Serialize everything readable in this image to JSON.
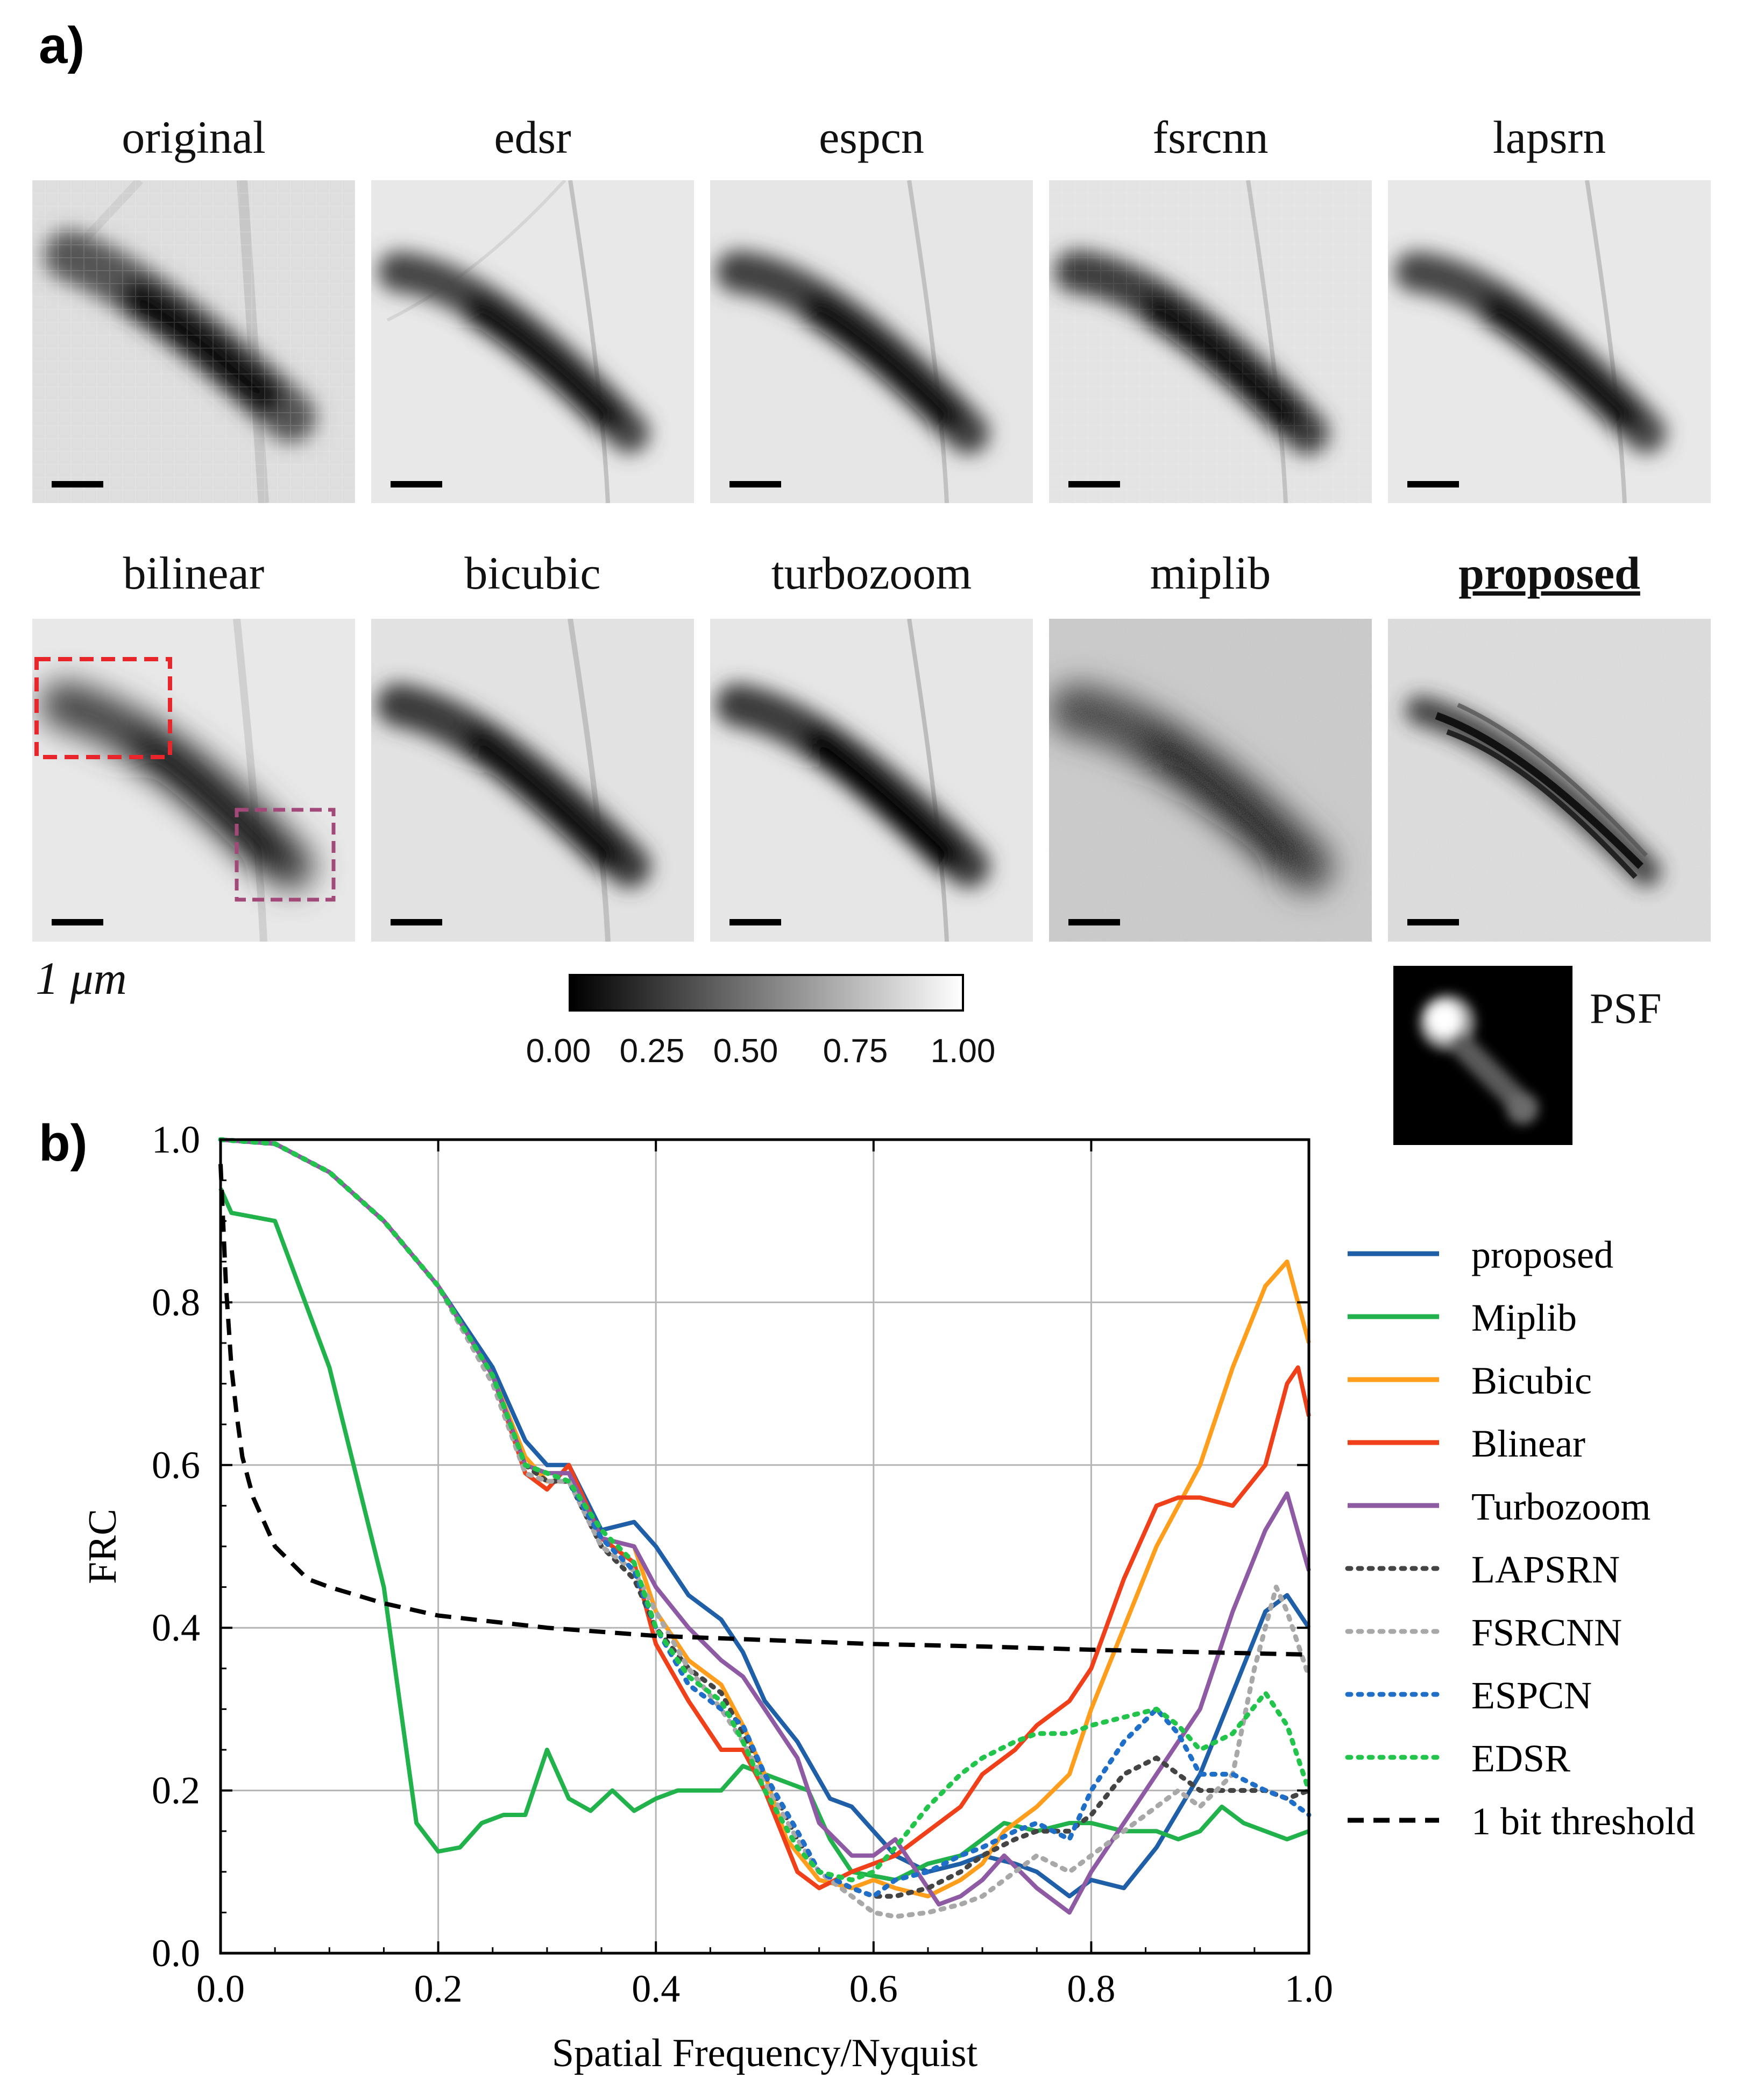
{
  "panel_a_label": "a)",
  "panel_b_label": "b)",
  "tiles_row1": [
    "original",
    "edsr",
    "espcn",
    "fsrcnn",
    "lapsrn"
  ],
  "tiles_row2": [
    "bilinear",
    "bicubic",
    "turbozoom",
    "miplib",
    "proposed"
  ],
  "scale_label": "1 μm",
  "colorbar": {
    "ticks": [
      "0.00",
      "0.25",
      "0.50",
      "0.75",
      "1.00"
    ]
  },
  "psf_label": "PSF",
  "colors": {
    "proposed": "#1f5fa8",
    "miplib": "#22b24c",
    "bicubic": "#ff9d1c",
    "bilinear": "#f0401a",
    "turbozoom": "#8e5aa4",
    "lapsrn": "#444444",
    "fsrcnn": "#a8a8a8",
    "espcn": "#1f6fc8",
    "edsr": "#22c44c",
    "threshold": "#000000"
  },
  "chart_data": {
    "type": "line",
    "xlabel": "Spatial Frequency/Nyquist",
    "ylabel": "FRC",
    "xlim": [
      0,
      1
    ],
    "ylim": [
      0,
      1
    ],
    "xticks": [
      "0.0",
      "0.2",
      "0.4",
      "0.6",
      "0.8",
      "1.0"
    ],
    "yticks": [
      "0.0",
      "0.2",
      "0.4",
      "0.6",
      "0.8",
      "1.0"
    ],
    "grid": true,
    "legend": "right",
    "series": [
      {
        "name": "proposed",
        "key": "proposed",
        "dash": "solid",
        "x": [
          0,
          0.05,
          0.1,
          0.15,
          0.2,
          0.25,
          0.28,
          0.3,
          0.32,
          0.35,
          0.38,
          0.4,
          0.43,
          0.46,
          0.48,
          0.5,
          0.53,
          0.56,
          0.58,
          0.6,
          0.62,
          0.65,
          0.68,
          0.7,
          0.73,
          0.75,
          0.78,
          0.8,
          0.83,
          0.86,
          0.9,
          0.93,
          0.96,
          0.98,
          1.0
        ],
        "y": [
          1.0,
          0.995,
          0.96,
          0.9,
          0.82,
          0.72,
          0.63,
          0.6,
          0.6,
          0.52,
          0.53,
          0.5,
          0.44,
          0.41,
          0.37,
          0.31,
          0.26,
          0.19,
          0.18,
          0.15,
          0.12,
          0.1,
          0.11,
          0.12,
          0.11,
          0.1,
          0.07,
          0.09,
          0.08,
          0.13,
          0.22,
          0.32,
          0.42,
          0.44,
          0.4
        ]
      },
      {
        "name": "Miplib",
        "key": "miplib",
        "dash": "solid",
        "x": [
          0,
          0.01,
          0.05,
          0.1,
          0.15,
          0.18,
          0.2,
          0.22,
          0.24,
          0.26,
          0.28,
          0.3,
          0.32,
          0.34,
          0.36,
          0.38,
          0.4,
          0.42,
          0.44,
          0.46,
          0.48,
          0.5,
          0.52,
          0.54,
          0.56,
          0.58,
          0.6,
          0.62,
          0.65,
          0.68,
          0.7,
          0.72,
          0.75,
          0.78,
          0.8,
          0.83,
          0.86,
          0.88,
          0.9,
          0.92,
          0.94,
          0.96,
          0.98,
          1.0
        ],
        "y": [
          0.94,
          0.91,
          0.9,
          0.72,
          0.45,
          0.16,
          0.125,
          0.13,
          0.16,
          0.17,
          0.17,
          0.25,
          0.19,
          0.175,
          0.2,
          0.175,
          0.19,
          0.2,
          0.2,
          0.2,
          0.23,
          0.22,
          0.21,
          0.2,
          0.14,
          0.1,
          0.095,
          0.09,
          0.11,
          0.12,
          0.14,
          0.16,
          0.15,
          0.16,
          0.16,
          0.15,
          0.15,
          0.14,
          0.15,
          0.18,
          0.16,
          0.15,
          0.14,
          0.15
        ]
      },
      {
        "name": "Bicubic",
        "key": "bicubic",
        "dash": "solid",
        "x": [
          0,
          0.05,
          0.1,
          0.15,
          0.2,
          0.25,
          0.28,
          0.3,
          0.32,
          0.35,
          0.38,
          0.4,
          0.43,
          0.46,
          0.48,
          0.5,
          0.52,
          0.55,
          0.58,
          0.6,
          0.62,
          0.65,
          0.68,
          0.7,
          0.72,
          0.75,
          0.78,
          0.8,
          0.83,
          0.86,
          0.9,
          0.93,
          0.96,
          0.98,
          1.0
        ],
        "y": [
          1.0,
          0.995,
          0.96,
          0.9,
          0.82,
          0.71,
          0.61,
          0.58,
          0.58,
          0.51,
          0.5,
          0.42,
          0.36,
          0.33,
          0.28,
          0.22,
          0.14,
          0.09,
          0.08,
          0.09,
          0.08,
          0.07,
          0.09,
          0.11,
          0.15,
          0.18,
          0.22,
          0.3,
          0.4,
          0.5,
          0.6,
          0.72,
          0.82,
          0.85,
          0.75
        ]
      },
      {
        "name": "Blinear",
        "key": "bilinear",
        "dash": "solid",
        "x": [
          0,
          0.05,
          0.1,
          0.15,
          0.2,
          0.25,
          0.28,
          0.3,
          0.32,
          0.35,
          0.38,
          0.4,
          0.43,
          0.46,
          0.48,
          0.5,
          0.53,
          0.55,
          0.58,
          0.6,
          0.62,
          0.65,
          0.68,
          0.7,
          0.73,
          0.75,
          0.78,
          0.8,
          0.83,
          0.86,
          0.88,
          0.9,
          0.93,
          0.96,
          0.98,
          0.99,
          1.0
        ],
        "y": [
          1.0,
          0.995,
          0.96,
          0.9,
          0.82,
          0.71,
          0.59,
          0.57,
          0.6,
          0.51,
          0.48,
          0.38,
          0.31,
          0.25,
          0.25,
          0.2,
          0.1,
          0.08,
          0.1,
          0.11,
          0.12,
          0.15,
          0.18,
          0.22,
          0.25,
          0.28,
          0.31,
          0.35,
          0.46,
          0.55,
          0.56,
          0.56,
          0.55,
          0.6,
          0.7,
          0.72,
          0.66
        ]
      },
      {
        "name": "Turbozoom",
        "key": "turbozoom",
        "dash": "solid",
        "x": [
          0,
          0.05,
          0.1,
          0.15,
          0.2,
          0.25,
          0.28,
          0.3,
          0.32,
          0.35,
          0.38,
          0.4,
          0.43,
          0.46,
          0.48,
          0.5,
          0.53,
          0.55,
          0.58,
          0.6,
          0.62,
          0.64,
          0.66,
          0.68,
          0.7,
          0.72,
          0.75,
          0.78,
          0.8,
          0.83,
          0.86,
          0.9,
          0.93,
          0.96,
          0.98,
          1.0
        ],
        "y": [
          1.0,
          0.995,
          0.96,
          0.9,
          0.82,
          0.71,
          0.6,
          0.59,
          0.59,
          0.51,
          0.5,
          0.45,
          0.4,
          0.36,
          0.34,
          0.3,
          0.24,
          0.16,
          0.12,
          0.12,
          0.14,
          0.1,
          0.06,
          0.07,
          0.09,
          0.12,
          0.08,
          0.05,
          0.1,
          0.16,
          0.22,
          0.3,
          0.42,
          0.52,
          0.565,
          0.47
        ]
      },
      {
        "name": "LAPSRN",
        "key": "lapsrn",
        "dash": "dot",
        "x": [
          0,
          0.05,
          0.1,
          0.15,
          0.2,
          0.25,
          0.28,
          0.3,
          0.32,
          0.35,
          0.38,
          0.4,
          0.43,
          0.46,
          0.48,
          0.5,
          0.53,
          0.55,
          0.58,
          0.6,
          0.62,
          0.65,
          0.68,
          0.7,
          0.73,
          0.75,
          0.78,
          0.8,
          0.83,
          0.86,
          0.88,
          0.9,
          0.93,
          0.96,
          0.98,
          1.0
        ],
        "y": [
          1.0,
          0.995,
          0.96,
          0.9,
          0.82,
          0.7,
          0.6,
          0.58,
          0.58,
          0.5,
          0.46,
          0.4,
          0.35,
          0.32,
          0.27,
          0.22,
          0.14,
          0.1,
          0.08,
          0.07,
          0.07,
          0.08,
          0.1,
          0.12,
          0.14,
          0.15,
          0.15,
          0.17,
          0.22,
          0.24,
          0.22,
          0.2,
          0.2,
          0.2,
          0.19,
          0.2
        ]
      },
      {
        "name": "FSRCNN",
        "key": "fsrcnn",
        "dash": "dot",
        "x": [
          0,
          0.05,
          0.1,
          0.15,
          0.2,
          0.25,
          0.28,
          0.3,
          0.32,
          0.35,
          0.38,
          0.4,
          0.43,
          0.46,
          0.48,
          0.5,
          0.53,
          0.55,
          0.58,
          0.6,
          0.62,
          0.65,
          0.68,
          0.7,
          0.73,
          0.75,
          0.78,
          0.8,
          0.83,
          0.86,
          0.88,
          0.9,
          0.93,
          0.95,
          0.97,
          0.98,
          1.0
        ],
        "y": [
          1.0,
          0.995,
          0.96,
          0.9,
          0.82,
          0.7,
          0.59,
          0.58,
          0.58,
          0.5,
          0.47,
          0.42,
          0.35,
          0.3,
          0.26,
          0.21,
          0.14,
          0.1,
          0.07,
          0.05,
          0.045,
          0.05,
          0.06,
          0.07,
          0.1,
          0.12,
          0.1,
          0.12,
          0.15,
          0.18,
          0.2,
          0.18,
          0.22,
          0.35,
          0.45,
          0.42,
          0.34
        ]
      },
      {
        "name": "ESPCN",
        "key": "espcn",
        "dash": "dot",
        "x": [
          0,
          0.05,
          0.1,
          0.15,
          0.2,
          0.25,
          0.28,
          0.3,
          0.32,
          0.35,
          0.38,
          0.4,
          0.43,
          0.46,
          0.48,
          0.5,
          0.53,
          0.55,
          0.58,
          0.6,
          0.62,
          0.65,
          0.68,
          0.7,
          0.73,
          0.75,
          0.78,
          0.8,
          0.83,
          0.86,
          0.88,
          0.9,
          0.93,
          0.96,
          0.98,
          1.0
        ],
        "y": [
          1.0,
          0.995,
          0.96,
          0.9,
          0.82,
          0.71,
          0.6,
          0.59,
          0.58,
          0.51,
          0.47,
          0.4,
          0.33,
          0.3,
          0.28,
          0.22,
          0.15,
          0.1,
          0.08,
          0.07,
          0.09,
          0.1,
          0.12,
          0.13,
          0.15,
          0.16,
          0.14,
          0.2,
          0.26,
          0.3,
          0.27,
          0.22,
          0.22,
          0.2,
          0.19,
          0.17
        ]
      },
      {
        "name": "EDSR",
        "key": "edsr",
        "dash": "dot",
        "x": [
          0,
          0.05,
          0.1,
          0.15,
          0.2,
          0.25,
          0.28,
          0.3,
          0.32,
          0.35,
          0.38,
          0.4,
          0.43,
          0.46,
          0.48,
          0.5,
          0.53,
          0.55,
          0.58,
          0.6,
          0.62,
          0.65,
          0.68,
          0.7,
          0.73,
          0.75,
          0.78,
          0.8,
          0.83,
          0.86,
          0.88,
          0.9,
          0.93,
          0.96,
          0.98,
          1.0
        ],
        "y": [
          1.0,
          0.995,
          0.96,
          0.9,
          0.82,
          0.71,
          0.6,
          0.59,
          0.58,
          0.52,
          0.48,
          0.4,
          0.34,
          0.31,
          0.26,
          0.2,
          0.13,
          0.1,
          0.09,
          0.1,
          0.13,
          0.18,
          0.22,
          0.24,
          0.26,
          0.27,
          0.27,
          0.28,
          0.29,
          0.3,
          0.28,
          0.25,
          0.27,
          0.32,
          0.28,
          0.2
        ]
      },
      {
        "name": "1 bit threshold",
        "key": "threshold",
        "dash": "dash",
        "x": [
          0,
          0.005,
          0.01,
          0.015,
          0.02,
          0.03,
          0.05,
          0.08,
          0.1,
          0.15,
          0.2,
          0.3,
          0.4,
          0.5,
          0.6,
          0.7,
          0.8,
          0.9,
          1.0
        ],
        "y": [
          0.97,
          0.82,
          0.72,
          0.66,
          0.61,
          0.56,
          0.5,
          0.46,
          0.45,
          0.43,
          0.415,
          0.4,
          0.39,
          0.385,
          0.38,
          0.377,
          0.373,
          0.37,
          0.367
        ]
      }
    ]
  }
}
